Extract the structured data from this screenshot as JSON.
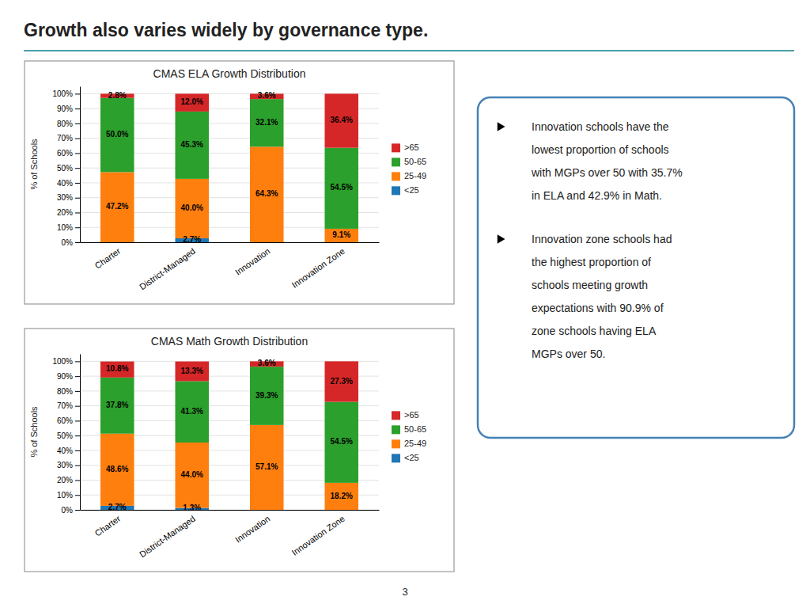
{
  "title": "Growth also varies widely by governance type.",
  "annotations": [
    [
      "Innovation schools have the",
      "lowest proportion of schools",
      "with MGPs over 50 with 35.7%",
      "in ELA and 42.9% in Math."
    ],
    [
      "Innovation zone schools had",
      "the highest proportion of",
      "schools meeting growth",
      "expectations with 90.9% of",
      "zone schools having ELA",
      "MGPs over 50."
    ]
  ],
  "page_number": "3",
  "chart_data": [
    {
      "type": "bar",
      "title": "CMAS ELA Growth Distribution",
      "ylabel": "% of Schools",
      "categories": [
        "Charter",
        "District-Managed",
        "Innovation",
        "Innovation Zone"
      ],
      "series": [
        {
          "name": "<25",
          "values": [
            0.0,
            2.7,
            0.0,
            0.0
          ],
          "value_labels": [
            null,
            "2.7%",
            null,
            null
          ]
        },
        {
          "name": "25-49",
          "values": [
            47.2,
            40.0,
            64.3,
            9.1
          ],
          "value_labels": [
            "47.2%",
            "40.0%",
            "64.3%",
            "9.1%"
          ]
        },
        {
          "name": "50-65",
          "values": [
            50.0,
            45.3,
            32.1,
            54.5
          ],
          "value_labels": [
            "50.0%",
            "45.3%",
            "32.1%",
            "54.5%"
          ]
        },
        {
          "name": ">65",
          "values": [
            2.8,
            12.0,
            3.6,
            36.4
          ],
          "value_labels": [
            "2.8%",
            "12.0%",
            "3.6%",
            "36.4%"
          ]
        }
      ],
      "stacked": true,
      "data_labels": true,
      "legend": "right",
      "grid": true,
      "ylim": [
        0,
        105
      ],
      "yticks": [
        {
          "value": 0,
          "label": "0%"
        },
        {
          "value": 10,
          "label": "10%"
        },
        {
          "value": 20,
          "label": "20%"
        },
        {
          "value": 30,
          "label": "30%"
        },
        {
          "value": 40,
          "label": "40%"
        },
        {
          "value": 50,
          "label": "50%"
        },
        {
          "value": 60,
          "label": "60%"
        },
        {
          "value": 70,
          "label": "70%"
        },
        {
          "value": 80,
          "label": "80%"
        },
        {
          "value": 90,
          "label": "90%"
        },
        {
          "value": 100,
          "label": "100%"
        }
      ]
    },
    {
      "type": "bar",
      "title": "CMAS Math Growth Distribution",
      "ylabel": "% of Schools",
      "categories": [
        "Charter",
        "District-Managed",
        "Innovation",
        "Innovation Zone"
      ],
      "series": [
        {
          "name": "<25",
          "values": [
            2.7,
            1.3,
            0.0,
            0.0
          ],
          "value_labels": [
            "2.7%",
            "1.3%",
            null,
            null
          ]
        },
        {
          "name": "25-49",
          "values": [
            48.6,
            44.0,
            57.1,
            18.2
          ],
          "value_labels": [
            "48.6%",
            "44.0%",
            "57.1%",
            "18.2%"
          ]
        },
        {
          "name": "50-65",
          "values": [
            37.8,
            41.3,
            39.3,
            54.5
          ],
          "value_labels": [
            "37.8%",
            "41.3%",
            "39.3%",
            "54.5%"
          ]
        },
        {
          "name": ">65",
          "values": [
            10.8,
            13.3,
            3.6,
            27.3
          ],
          "value_labels": [
            "10.8%",
            "13.3%",
            "3.6%",
            "27.3%"
          ]
        }
      ],
      "stacked": true,
      "data_labels": true,
      "legend": "right",
      "grid": true,
      "ylim": [
        0,
        105
      ],
      "yticks": [
        {
          "value": 0,
          "label": "0%"
        },
        {
          "value": 10,
          "label": "10%"
        },
        {
          "value": 20,
          "label": "20%"
        },
        {
          "value": 30,
          "label": "30%"
        },
        {
          "value": 40,
          "label": "40%"
        },
        {
          "value": 50,
          "label": "50%"
        },
        {
          "value": 60,
          "label": "60%"
        },
        {
          "value": 70,
          "label": "70%"
        },
        {
          "value": 80,
          "label": "80%"
        },
        {
          "value": 90,
          "label": "90%"
        },
        {
          "value": 100,
          "label": "100%"
        }
      ]
    }
  ]
}
